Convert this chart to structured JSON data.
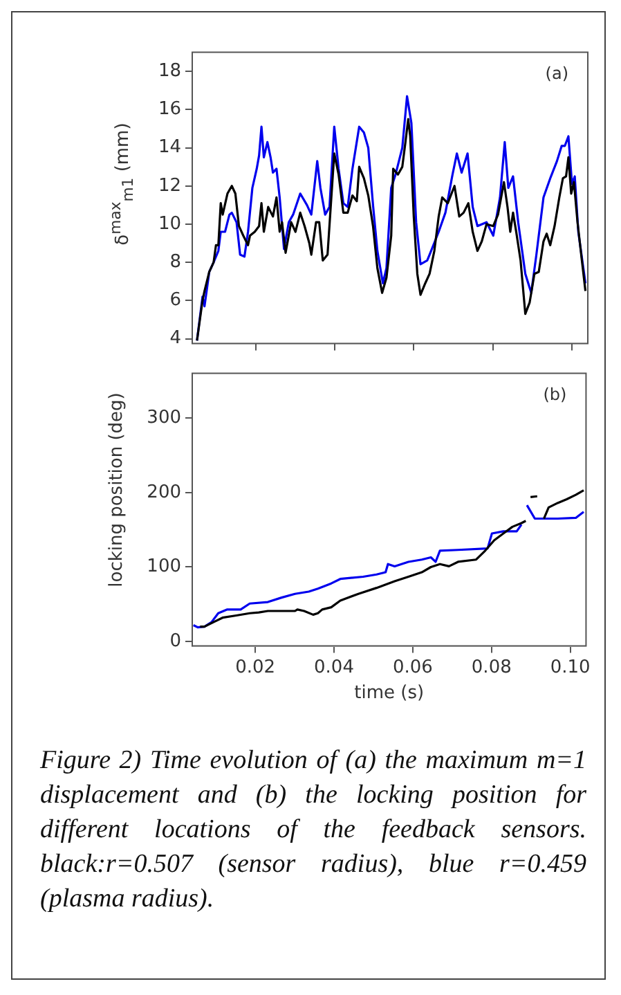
{
  "chart_data": [
    {
      "type": "line",
      "ylabel": "δ$^{max}$$_{m1}$ (mm)",
      "annotations": [
        "(a)"
      ],
      "xlim": [
        0.004,
        0.104
      ],
      "xticks": [
        {
          "value": 0.02,
          "label": null
        },
        {
          "value": 0.04,
          "label": null
        },
        {
          "value": 0.06,
          "label": null
        },
        {
          "value": 0.08,
          "label": null
        },
        {
          "value": 0.1,
          "label": null
        }
      ],
      "ylim": [
        3.75,
        19
      ],
      "yticks": [
        4,
        6,
        8,
        10,
        12,
        14,
        16,
        18
      ],
      "tick_labels": "y",
      "grid": false,
      "legend": false,
      "marker": "none",
      "series": [
        {
          "color": "#000000",
          "x": [
            0.0052,
            0.0066,
            0.0071,
            0.0083,
            0.0094,
            0.01,
            0.0106,
            0.0112,
            0.0117,
            0.0129,
            0.014,
            0.0149,
            0.0158,
            0.0169,
            0.0181,
            0.0186,
            0.0198,
            0.0209,
            0.0215,
            0.0221,
            0.0232,
            0.0244,
            0.0253,
            0.0261,
            0.0267,
            0.0276,
            0.029,
            0.0301,
            0.0313,
            0.0324,
            0.0336,
            0.0341,
            0.0353,
            0.0361,
            0.037,
            0.0382,
            0.0399,
            0.041,
            0.0422,
            0.0433,
            0.0445,
            0.0456,
            0.0462,
            0.0474,
            0.0485,
            0.0497,
            0.0508,
            0.052,
            0.0531,
            0.0543,
            0.0548,
            0.056,
            0.0571,
            0.0579,
            0.0586,
            0.0591,
            0.06,
            0.0609,
            0.0617,
            0.0629,
            0.064,
            0.0652,
            0.0663,
            0.0672,
            0.0686,
            0.0703,
            0.0715,
            0.0726,
            0.0738,
            0.0749,
            0.0761,
            0.0772,
            0.0784,
            0.0801,
            0.0813,
            0.0828,
            0.0837,
            0.0844,
            0.0851,
            0.0859,
            0.087,
            0.0882,
            0.0893,
            0.0905,
            0.0916,
            0.0928,
            0.0936,
            0.0945,
            0.0956,
            0.0968,
            0.0977,
            0.0985,
            0.0991,
            0.0998,
            0.1005,
            0.1014,
            0.1025,
            0.1034
          ],
          "values": [
            3.9,
            6.0,
            6.5,
            7.5,
            8.0,
            8.9,
            8.9,
            11.1,
            10.5,
            11.6,
            12.0,
            11.6,
            9.9,
            9.4,
            8.9,
            9.4,
            9.6,
            9.9,
            11.1,
            9.6,
            10.9,
            10.4,
            11.4,
            9.6,
            10.1,
            8.5,
            10.1,
            9.6,
            10.6,
            9.9,
            9.0,
            8.4,
            10.1,
            10.1,
            8.1,
            8.4,
            13.7,
            12.6,
            10.6,
            10.6,
            11.5,
            11.2,
            13.0,
            12.4,
            11.5,
            9.9,
            7.7,
            6.4,
            7.2,
            9.4,
            12.9,
            12.6,
            13.0,
            14.3,
            15.5,
            14.6,
            10.4,
            7.4,
            6.3,
            6.9,
            7.4,
            8.6,
            10.4,
            11.4,
            11.1,
            12.0,
            10.4,
            10.6,
            11.1,
            9.6,
            8.6,
            9.1,
            10.0,
            9.9,
            10.5,
            12.2,
            10.9,
            9.6,
            10.6,
            9.6,
            8.1,
            5.3,
            5.9,
            7.4,
            7.5,
            9.1,
            9.5,
            8.9,
            9.9,
            11.4,
            12.4,
            12.5,
            13.5,
            11.6,
            12.2,
            10.1,
            8.1,
            6.5
          ]
        },
        {
          "color": "#0000ee",
          "x": [
            0.0052,
            0.0066,
            0.0071,
            0.0083,
            0.0094,
            0.0106,
            0.0112,
            0.0123,
            0.0134,
            0.014,
            0.0152,
            0.0161,
            0.0172,
            0.0181,
            0.0192,
            0.0203,
            0.0209,
            0.0215,
            0.0221,
            0.023,
            0.0238,
            0.0244,
            0.0253,
            0.0261,
            0.0272,
            0.0284,
            0.0295,
            0.0313,
            0.033,
            0.0341,
            0.0356,
            0.0364,
            0.0376,
            0.0387,
            0.0399,
            0.041,
            0.0422,
            0.0433,
            0.0445,
            0.0462,
            0.0474,
            0.0485,
            0.0497,
            0.0508,
            0.0522,
            0.0531,
            0.0543,
            0.0554,
            0.0571,
            0.0583,
            0.0594,
            0.0606,
            0.0617,
            0.0634,
            0.064,
            0.0663,
            0.068,
            0.0698,
            0.0709,
            0.0721,
            0.0736,
            0.0749,
            0.0761,
            0.0784,
            0.0801,
            0.0818,
            0.083,
            0.0839,
            0.0851,
            0.0864,
            0.0882,
            0.0897,
            0.091,
            0.0928,
            0.0945,
            0.0962,
            0.0974,
            0.0982,
            0.0991,
            0.1,
            0.1007,
            0.1016,
            0.1034
          ],
          "values": [
            3.9,
            6.2,
            5.7,
            7.5,
            8.0,
            8.6,
            9.6,
            9.6,
            10.5,
            10.6,
            10.1,
            8.4,
            8.3,
            9.6,
            11.9,
            12.9,
            13.6,
            15.1,
            13.5,
            14.3,
            13.5,
            12.7,
            12.9,
            11.4,
            8.7,
            10.1,
            10.5,
            11.6,
            11.0,
            10.5,
            13.3,
            11.9,
            10.5,
            10.9,
            15.1,
            12.9,
            11.1,
            10.9,
            12.9,
            15.1,
            14.8,
            14.0,
            11.0,
            8.6,
            6.9,
            7.7,
            11.9,
            12.6,
            14.0,
            16.7,
            15.3,
            10.1,
            7.9,
            8.1,
            8.4,
            9.6,
            10.6,
            12.6,
            13.7,
            12.7,
            13.7,
            10.9,
            9.9,
            10.1,
            9.4,
            11.4,
            14.3,
            11.9,
            12.5,
            10.1,
            7.4,
            6.4,
            8.4,
            11.4,
            12.4,
            13.3,
            14.1,
            14.1,
            14.6,
            12.1,
            12.5,
            9.6,
            6.9
          ]
        }
      ]
    },
    {
      "type": "line",
      "xlabel": "time (s)",
      "ylabel": "locking position (deg)",
      "annotations": [
        "(b)",
        "Figure 2) Time evolution of (a) the maximum m=1 displacement and (b) the locking position for different locations of the feedback sensors. black:r=0.507 (sensor radius), blue r=0.459 (plasma radius)."
      ],
      "xlim": [
        0.004,
        0.104
      ],
      "xticks": [
        0.02,
        0.04,
        0.06,
        0.08,
        {
          "value": 0.1,
          "label": "0.10"
        }
      ],
      "ylim": [
        -6,
        360
      ],
      "yticks": [
        0,
        100,
        200,
        300
      ],
      "grid": false,
      "legend": false,
      "marker": "none",
      "series": [
        {
          "color": "#000000",
          "x": [
            0.006,
            0.0071,
            0.0094,
            0.0117,
            0.0152,
            0.0186,
            0.0209,
            0.0232,
            0.0301,
            0.0307,
            0.0324,
            0.0347,
            0.0359,
            0.037,
            0.0393,
            0.0416,
            0.0462,
            0.0508,
            0.0554,
            0.0589,
            0.0623,
            0.0646,
            0.0669,
            0.0692,
            0.0715,
            0.0761,
            0.0784,
            0.0807,
            0.083,
            0.0853,
            0.0876,
            0.0887,
            0.0893,
            0.0899,
            0.0916,
            0.0921,
            0.0933,
            0.0945,
            0.0968,
            0.0991,
            0.1014,
            0.1034
          ],
          "values": [
            20,
            20,
            26,
            32,
            35,
            38,
            39,
            41,
            41,
            43,
            41,
            36,
            38,
            43,
            46,
            55,
            64,
            72,
            81,
            87,
            93,
            100,
            104,
            101,
            107,
            110,
            122,
            136,
            145,
            154,
            159,
            162,
            null,
            194,
            195,
            null,
            165,
            180,
            186,
            191,
            197,
            203
          ]
        },
        {
          "color": "#0000ee",
          "x": [
            0.0043,
            0.0054,
            0.0071,
            0.0089,
            0.0106,
            0.0129,
            0.0163,
            0.0186,
            0.0232,
            0.0267,
            0.0301,
            0.0336,
            0.0359,
            0.0393,
            0.0416,
            0.0474,
            0.0508,
            0.0531,
            0.0537,
            0.0554,
            0.0589,
            0.0623,
            0.0646,
            0.0658,
            0.0669,
            0.0715,
            0.079,
            0.0801,
            0.083,
            0.0864,
            0.0876,
            0.0885,
            0.089,
            0.091,
            0.0968,
            0.1014,
            0.1034
          ],
          "values": [
            22,
            19,
            20,
            26,
            38,
            43,
            43,
            51,
            53,
            59,
            64,
            67,
            71,
            78,
            84,
            87,
            90,
            93,
            104,
            101,
            107,
            110,
            113,
            107,
            122,
            123,
            125,
            145,
            148,
            148,
            157,
            null,
            183,
            165,
            165,
            166,
            174
          ]
        }
      ]
    }
  ]
}
